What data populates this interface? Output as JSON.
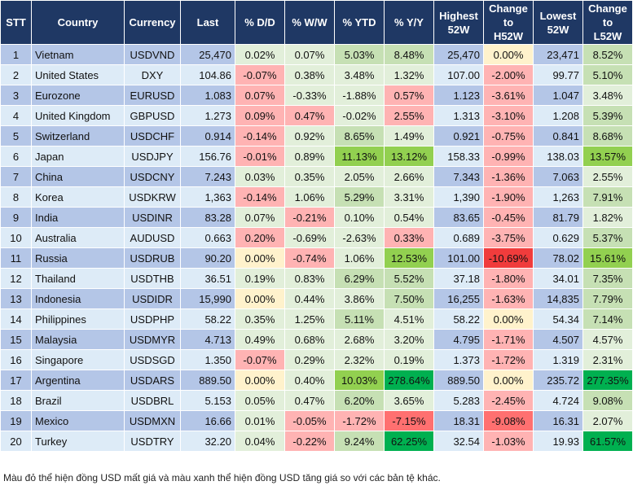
{
  "headers": [
    "STT",
    "Country",
    "Currency",
    "Last",
    "% D/D",
    "% W/W",
    "% YTD",
    "% Y/Y",
    "Highest 52W",
    "Change to H52W",
    "Lowest 52W",
    "Change to L52W"
  ],
  "colors": {
    "header": "#1f3864",
    "row_odd": "#b4c6e7",
    "row_even": "#ddebf7",
    "light_green": "#e2efda",
    "mid_green": "#c6e0b4",
    "bright_green": "#92d050",
    "dark_green": "#00b050",
    "pink": "#ffb3b3",
    "medium_red": "#ff7070",
    "red": "#f03c3c",
    "yellow": "#fff2cc"
  },
  "rows": [
    {
      "stt": "1",
      "country": "Vietnam",
      "currency": "USDVND",
      "last": "25,470",
      "dd": "0.02%",
      "ww": "0.07%",
      "ytd": "5.03%",
      "yy": "8.48%",
      "high": "25,470",
      "h52": "0.00%",
      "low": "23,471",
      "l52": "8.52%",
      "shade": "ggGGyG"
    },
    {
      "stt": "2",
      "country": "United States",
      "currency": "DXY",
      "last": "104.86",
      "dd": "-0.07%",
      "ww": "0.38%",
      "ytd": "3.48%",
      "yy": "1.32%",
      "high": "107.00",
      "h52": "-2.00%",
      "low": "99.77",
      "l52": "5.10%",
      "shade": "pgggpG"
    },
    {
      "stt": "3",
      "country": "Eurozone",
      "currency": "EURUSD",
      "last": "1.083",
      "dd": "0.07%",
      "ww": "-0.33%",
      "ytd": "-1.88%",
      "yy": "0.57%",
      "high": "1.123",
      "h52": "-3.61%",
      "low": "1.047",
      "l52": "3.48%",
      "shade": "pggppg"
    },
    {
      "stt": "4",
      "country": "United Kingdom",
      "currency": "GBPUSD",
      "last": "1.273",
      "dd": "0.09%",
      "ww": "0.47%",
      "ytd": "-0.02%",
      "yy": "2.55%",
      "high": "1.313",
      "h52": "-3.10%",
      "low": "1.208",
      "l52": "5.39%",
      "shade": "ppgppG"
    },
    {
      "stt": "5",
      "country": "Switzerland",
      "currency": "USDCHF",
      "last": "0.914",
      "dd": "-0.14%",
      "ww": "0.92%",
      "ytd": "8.65%",
      "yy": "1.49%",
      "high": "0.921",
      "h52": "-0.75%",
      "low": "0.841",
      "l52": "8.68%",
      "shade": "pgGgpG"
    },
    {
      "stt": "6",
      "country": "Japan",
      "currency": "USDJPY",
      "last": "156.76",
      "dd": "-0.01%",
      "ww": "0.89%",
      "ytd": "11.13%",
      "yy": "13.12%",
      "high": "158.33",
      "h52": "-0.99%",
      "low": "138.03",
      "l52": "13.57%",
      "shade": "pgBBpB"
    },
    {
      "stt": "7",
      "country": "China",
      "currency": "USDCNY",
      "last": "7.243",
      "dd": "0.03%",
      "ww": "0.35%",
      "ytd": "2.05%",
      "yy": "2.66%",
      "high": "7.343",
      "h52": "-1.36%",
      "low": "7.063",
      "l52": "2.55%",
      "shade": "ggggpg"
    },
    {
      "stt": "8",
      "country": "Korea",
      "currency": "USDKRW",
      "last": "1,363",
      "dd": "-0.14%",
      "ww": "1.06%",
      "ytd": "5.29%",
      "yy": "3.31%",
      "high": "1,390",
      "h52": "-1.90%",
      "low": "1,263",
      "l52": "7.91%",
      "shade": "pgGgpG"
    },
    {
      "stt": "9",
      "country": "India",
      "currency": "USDINR",
      "last": "83.28",
      "dd": "0.07%",
      "ww": "-0.21%",
      "ytd": "0.10%",
      "yy": "0.54%",
      "high": "83.65",
      "h52": "-0.45%",
      "low": "81.79",
      "l52": "1.82%",
      "shade": "gpggpg"
    },
    {
      "stt": "10",
      "country": "Australia",
      "currency": "AUDUSD",
      "last": "0.663",
      "dd": "0.20%",
      "ww": "-0.69%",
      "ytd": "-2.63%",
      "yy": "0.33%",
      "high": "0.689",
      "h52": "-3.75%",
      "low": "0.629",
      "l52": "5.37%",
      "shade": "pggppG"
    },
    {
      "stt": "11",
      "country": "Russia",
      "currency": "USDRUB",
      "last": "90.20",
      "dd": "0.00%",
      "ww": "-0.74%",
      "ytd": "1.06%",
      "yy": "12.53%",
      "high": "101.00",
      "h52": "-10.69%",
      "low": "78.02",
      "l52": "15.61%",
      "shade": "ypgBrB"
    },
    {
      "stt": "12",
      "country": "Thailand",
      "currency": "USDTHB",
      "last": "36.51",
      "dd": "0.19%",
      "ww": "0.83%",
      "ytd": "6.29%",
      "yy": "5.52%",
      "high": "37.18",
      "h52": "-1.80%",
      "low": "34.01",
      "l52": "7.35%",
      "shade": "ggGGpG"
    },
    {
      "stt": "13",
      "country": "Indonesia",
      "currency": "USDIDR",
      "last": "15,990",
      "dd": "0.00%",
      "ww": "0.44%",
      "ytd": "3.86%",
      "yy": "7.50%",
      "high": "16,255",
      "h52": "-1.63%",
      "low": "14,835",
      "l52": "7.79%",
      "shade": "yggGpG"
    },
    {
      "stt": "14",
      "country": "Philippines",
      "currency": "USDPHP",
      "last": "58.22",
      "dd": "0.35%",
      "ww": "1.25%",
      "ytd": "5.11%",
      "yy": "4.51%",
      "high": "58.22",
      "h52": "0.00%",
      "low": "54.34",
      "l52": "7.14%",
      "shade": "ggGgyG"
    },
    {
      "stt": "15",
      "country": "Malaysia",
      "currency": "USDMYR",
      "last": "4.713",
      "dd": "0.49%",
      "ww": "0.68%",
      "ytd": "2.68%",
      "yy": "3.20%",
      "high": "4.795",
      "h52": "-1.71%",
      "low": "4.507",
      "l52": "4.57%",
      "shade": "ggggpg"
    },
    {
      "stt": "16",
      "country": "Singapore",
      "currency": "USDSGD",
      "last": "1.350",
      "dd": "-0.07%",
      "ww": "0.29%",
      "ytd": "2.32%",
      "yy": "0.19%",
      "high": "1.373",
      "h52": "-1.72%",
      "low": "1.319",
      "l52": "2.31%",
      "shade": "pgggpg"
    },
    {
      "stt": "17",
      "country": "Argentina",
      "currency": "USDARS",
      "last": "889.50",
      "dd": "0.00%",
      "ww": "0.40%",
      "ytd": "10.03%",
      "yy": "278.64%",
      "high": "889.50",
      "h52": "0.00%",
      "low": "235.72",
      "l52": "277.35%",
      "shade": "ygBDyD"
    },
    {
      "stt": "18",
      "country": "Brazil",
      "currency": "USDBRL",
      "last": "5.153",
      "dd": "0.05%",
      "ww": "0.47%",
      "ytd": "6.20%",
      "yy": "3.65%",
      "high": "5.283",
      "h52": "-2.45%",
      "low": "4.724",
      "l52": "9.08%",
      "shade": "ggGgpG"
    },
    {
      "stt": "19",
      "country": "Mexico",
      "currency": "USDMXN",
      "last": "16.66",
      "dd": "0.01%",
      "ww": "-0.05%",
      "ytd": "-1.72%",
      "yy": "-7.15%",
      "high": "18.31",
      "h52": "-9.08%",
      "low": "16.31",
      "l52": "2.07%",
      "shade": "gppRRg"
    },
    {
      "stt": "20",
      "country": "Turkey",
      "currency": "USDTRY",
      "last": "32.20",
      "dd": "0.04%",
      "ww": "-0.22%",
      "ytd": "9.24%",
      "yy": "62.25%",
      "high": "32.54",
      "h52": "-1.03%",
      "low": "19.93",
      "l52": "61.57%",
      "shade": "gpGDpD"
    }
  ],
  "footnote": "Màu đỏ thể hiện đồng USD mất giá và màu xanh thể hiện đồng USD tăng giá so với các bản tệ khác."
}
